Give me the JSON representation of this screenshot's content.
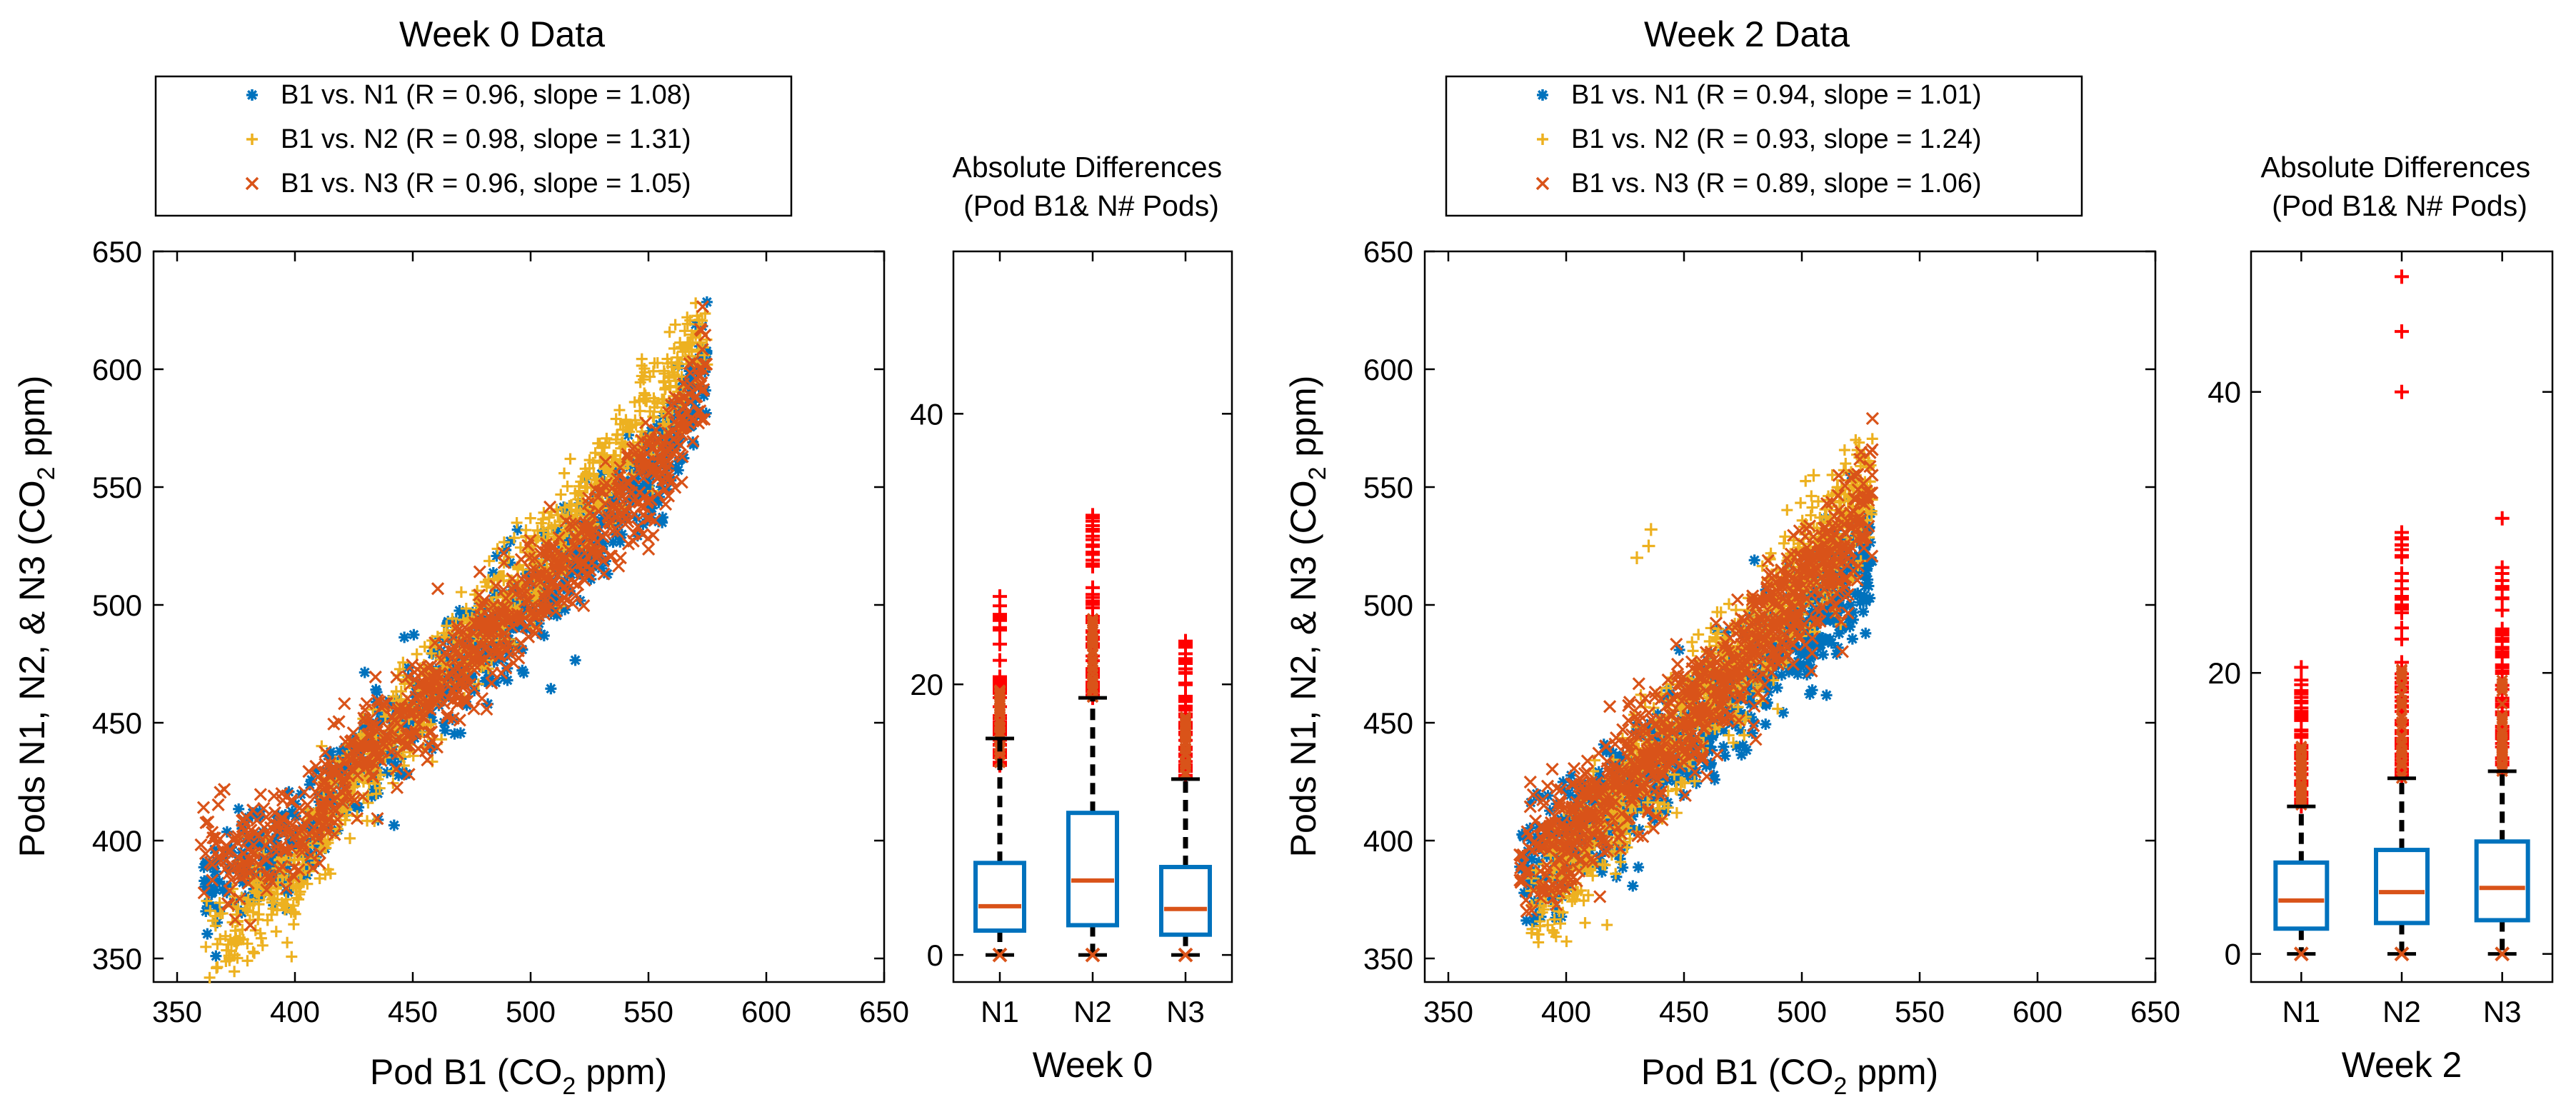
{
  "colors": {
    "n1": "#0072BD",
    "n2": "#EDB120",
    "n3": "#D95319",
    "outlier": "#FF0000",
    "box": "#0072BD",
    "median": "#D95319",
    "whisker": "#000000"
  },
  "chart_data": [
    {
      "type": "scatter",
      "title": "Week 0 Data",
      "xlabel": "Pod B1 (CO₂ ppm)",
      "ylabel": "Pods N1, N2, & N3 (CO₂ ppm)",
      "xlim": [
        340,
        650
      ],
      "ylim": [
        340,
        650
      ],
      "xticks": [
        350,
        400,
        450,
        500,
        550,
        600,
        650
      ],
      "yticks": [
        350,
        400,
        450,
        500,
        550,
        600,
        650
      ],
      "legend_position": "above-plot",
      "series": [
        {
          "key": "n1",
          "name": "B1 vs. N1 (R = 0.96, slope = 1.08)",
          "marker": "asterisk",
          "trend": [
            [
              360,
              378
            ],
            [
              385,
              391
            ],
            [
              405,
              404
            ],
            [
              420,
              428
            ],
            [
              440,
              447
            ],
            [
              460,
              466
            ],
            [
              480,
              484
            ],
            [
              500,
              502
            ],
            [
              520,
              522
            ],
            [
              540,
              544
            ],
            [
              560,
              568
            ],
            [
              575,
              606
            ]
          ]
        },
        {
          "key": "n2",
          "name": "B1 vs. N2 (R = 0.98, slope = 1.31)",
          "marker": "plus",
          "trend": [
            [
              362,
              355
            ],
            [
              372,
              360
            ],
            [
              385,
              372
            ],
            [
              400,
              385
            ],
            [
              420,
              420
            ],
            [
              440,
              445
            ],
            [
              460,
              470
            ],
            [
              480,
              492
            ],
            [
              500,
              514
            ],
            [
              520,
              540
            ],
            [
              540,
              566
            ],
            [
              560,
              596
            ],
            [
              575,
              622
            ]
          ]
        },
        {
          "key": "n3",
          "name": "B1 vs. N3 (R = 0.96, slope = 1.05)",
          "marker": "x",
          "trend": [
            [
              360,
              395
            ],
            [
              385,
              396
            ],
            [
              405,
              405
            ],
            [
              420,
              427
            ],
            [
              440,
              446
            ],
            [
              460,
              465
            ],
            [
              480,
              484
            ],
            [
              500,
              502
            ],
            [
              520,
              522
            ],
            [
              540,
              543
            ],
            [
              560,
              568
            ],
            [
              575,
              603
            ]
          ]
        }
      ]
    },
    {
      "type": "box",
      "title": "Absolute Differences\n(Pod B1& N# Pods)",
      "xlabel": "Week 0",
      "categories": [
        "N1",
        "N2",
        "N3"
      ],
      "ylim": [
        -2,
        52
      ],
      "yticks": [
        0,
        20,
        40
      ],
      "boxes": [
        {
          "q1": 1.8,
          "median": 3.6,
          "q3": 6.8,
          "whisker_low": 0,
          "whisker_high": 16,
          "outlier_range": [
            14,
            26.5
          ]
        },
        {
          "q1": 2.2,
          "median": 5.5,
          "q3": 10.5,
          "whisker_low": 0,
          "whisker_high": 19,
          "outlier_range": [
            19,
            32.5
          ]
        },
        {
          "q1": 1.5,
          "median": 3.4,
          "q3": 6.5,
          "whisker_low": 0,
          "whisker_high": 13,
          "outlier_range": [
            13,
            23.2
          ]
        }
      ]
    },
    {
      "type": "scatter",
      "title": "Week 2 Data",
      "xlabel": "Pod B1 (CO₂ ppm)",
      "ylabel": "Pods N1, N2, & N3 (CO₂ ppm)",
      "xlim": [
        340,
        650
      ],
      "ylim": [
        340,
        650
      ],
      "xticks": [
        350,
        400,
        450,
        500,
        550,
        600,
        650
      ],
      "yticks": [
        350,
        400,
        450,
        500,
        550,
        600,
        650
      ],
      "legend_position": "above-plot",
      "series": [
        {
          "key": "n1",
          "name": "B1 vs. N1 (R = 0.94, slope = 1.01)",
          "marker": "asterisk",
          "trend": [
            [
              380,
              385
            ],
            [
              400,
              396
            ],
            [
              420,
              415
            ],
            [
              440,
              433
            ],
            [
              460,
              452
            ],
            [
              480,
              472
            ],
            [
              500,
              492
            ],
            [
              515,
              505
            ],
            [
              530,
              525
            ]
          ]
        },
        {
          "key": "n2",
          "name": "B1 vs. N2 (R = 0.93, slope = 1.24)",
          "marker": "plus",
          "trend": [
            [
              385,
              372
            ],
            [
              400,
              388
            ],
            [
              420,
              412
            ],
            [
              440,
              438
            ],
            [
              460,
              462
            ],
            [
              480,
              486
            ],
            [
              500,
              512
            ],
            [
              515,
              530
            ],
            [
              530,
              552
            ]
          ]
        },
        {
          "key": "n3",
          "name": "B1 vs. N3 (R = 0.89, slope = 1.06)",
          "marker": "x",
          "trend": [
            [
              380,
              390
            ],
            [
              400,
              400
            ],
            [
              420,
              420
            ],
            [
              440,
              441
            ],
            [
              460,
              462
            ],
            [
              480,
              483
            ],
            [
              500,
              505
            ],
            [
              520,
              525
            ],
            [
              530,
              550
            ]
          ]
        }
      ]
    },
    {
      "type": "box",
      "title": "Absolute Differences\n(Pod B1& N# Pods)",
      "xlabel": "Week 2",
      "categories": [
        "N1",
        "N2",
        "N3"
      ],
      "ylim": [
        -2,
        50
      ],
      "yticks": [
        0,
        20,
        40
      ],
      "boxes": [
        {
          "q1": 1.8,
          "median": 3.8,
          "q3": 6.5,
          "whisker_low": 0,
          "whisker_high": 10.5,
          "outlier_range": [
            10.5,
            20.4
          ],
          "extra_outliers": []
        },
        {
          "q1": 2.2,
          "median": 4.4,
          "q3": 7.4,
          "whisker_low": 0,
          "whisker_high": 12.5,
          "outlier_range": [
            12.5,
            30
          ],
          "extra_outliers": [
            40,
            44.3,
            48.2
          ]
        },
        {
          "q1": 2.4,
          "median": 4.7,
          "q3": 8,
          "whisker_low": 0,
          "whisker_high": 13,
          "outlier_range": [
            13,
            27.5
          ],
          "extra_outliers": [
            31
          ]
        }
      ]
    }
  ]
}
